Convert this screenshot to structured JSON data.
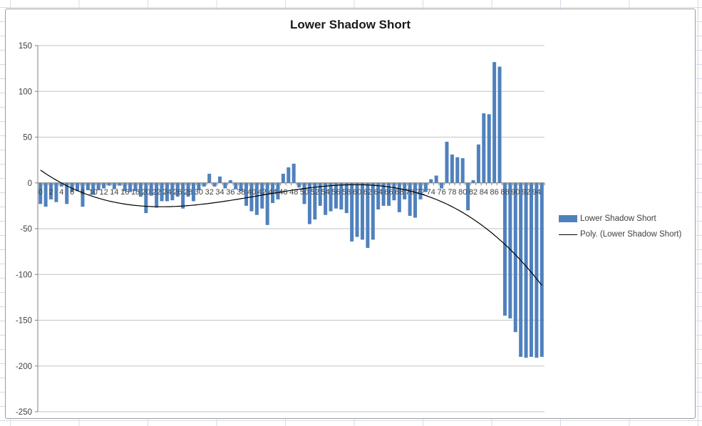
{
  "title": "Lower Shadow Short",
  "colors": {
    "bar": "#4F81BD",
    "trendline": "#000000",
    "gridline": "#C3C3C3",
    "axis": "#808080",
    "tick_text": "#3f3f3f",
    "chart_border": "#9B9B9B",
    "sheet_grid": "#D4DBE8"
  },
  "legend": {
    "items": [
      {
        "label": "Lower Shadow Short",
        "swatch": "bar-swatch"
      },
      {
        "label": "Poly. (Lower Shadow Short)",
        "swatch": "line-swatch"
      }
    ]
  },
  "chart_data": {
    "type": "bar",
    "title": "Lower Shadow Short",
    "series_name": "Lower Shadow Short",
    "x": [
      0,
      1,
      2,
      3,
      4,
      5,
      6,
      7,
      8,
      9,
      10,
      11,
      12,
      13,
      14,
      15,
      16,
      17,
      18,
      19,
      20,
      21,
      22,
      23,
      24,
      25,
      26,
      27,
      28,
      29,
      30,
      31,
      32,
      33,
      34,
      35,
      36,
      37,
      38,
      39,
      40,
      41,
      42,
      43,
      44,
      45,
      46,
      47,
      48,
      49,
      50,
      51,
      52,
      53,
      54,
      55,
      56,
      57,
      58,
      59,
      60,
      61,
      62,
      63,
      64,
      65,
      66,
      67,
      68,
      69,
      70,
      71,
      72,
      73,
      74,
      75,
      76,
      77,
      78,
      79,
      80,
      81,
      82,
      83,
      84,
      85,
      86,
      87,
      88,
      89,
      90,
      91,
      92,
      93,
      94,
      95
    ],
    "values": [
      -23,
      -26,
      -18,
      -21,
      -4,
      -23,
      -10,
      -9,
      -26,
      -8,
      -13,
      -8,
      -6,
      -3,
      -7,
      -3,
      -9,
      -10,
      -9,
      -15,
      -33,
      -14,
      -27,
      -20,
      -20,
      -19,
      -15,
      -28,
      -15,
      -20,
      -8,
      -4,
      10,
      -4,
      7,
      -6,
      3,
      -7,
      -9,
      -25,
      -31,
      -35,
      -28,
      -46,
      -22,
      -18,
      10,
      17,
      21,
      -5,
      -23,
      -45,
      -40,
      -25,
      -35,
      -31,
      -28,
      -29,
      -33,
      -64,
      -59,
      -62,
      -71,
      -62,
      -29,
      -25,
      -25,
      -19,
      -32,
      -18,
      -36,
      -38,
      -18,
      -10,
      4,
      8,
      -6,
      45,
      31,
      28,
      27,
      -30,
      3,
      42,
      76,
      75,
      132,
      127,
      -145,
      -148,
      -163,
      -190,
      -191,
      -190,
      -191,
      -190
    ],
    "trendline": {
      "name": "Poly. (Lower Shadow Short)",
      "kind": "polynomial",
      "coeffs_d_c_b_a": [
        14,
        -4.002,
        0.1207,
        -0.000974
      ]
    },
    "y_axis": {
      "min": -250,
      "max": 150,
      "ticks": [
        150,
        100,
        50,
        0,
        -50,
        -100,
        -150,
        -200,
        -250
      ]
    },
    "x_axis": {
      "labels": [
        "0",
        "2",
        "4",
        "6",
        "8",
        "10",
        "12",
        "14",
        "16",
        "18",
        "20",
        "22",
        "24",
        "26",
        "28",
        "30",
        "32",
        "34",
        "36",
        "38",
        "40",
        "42",
        "44",
        "46",
        "48",
        "50",
        "52",
        "54",
        "56",
        "58",
        "60",
        "62",
        "64",
        "66",
        "68",
        "70",
        "72",
        "74",
        "76",
        "78",
        "80",
        "82",
        "84",
        "86",
        "88",
        "90",
        "92",
        "94"
      ]
    },
    "grid": true,
    "legend_position": "right"
  }
}
